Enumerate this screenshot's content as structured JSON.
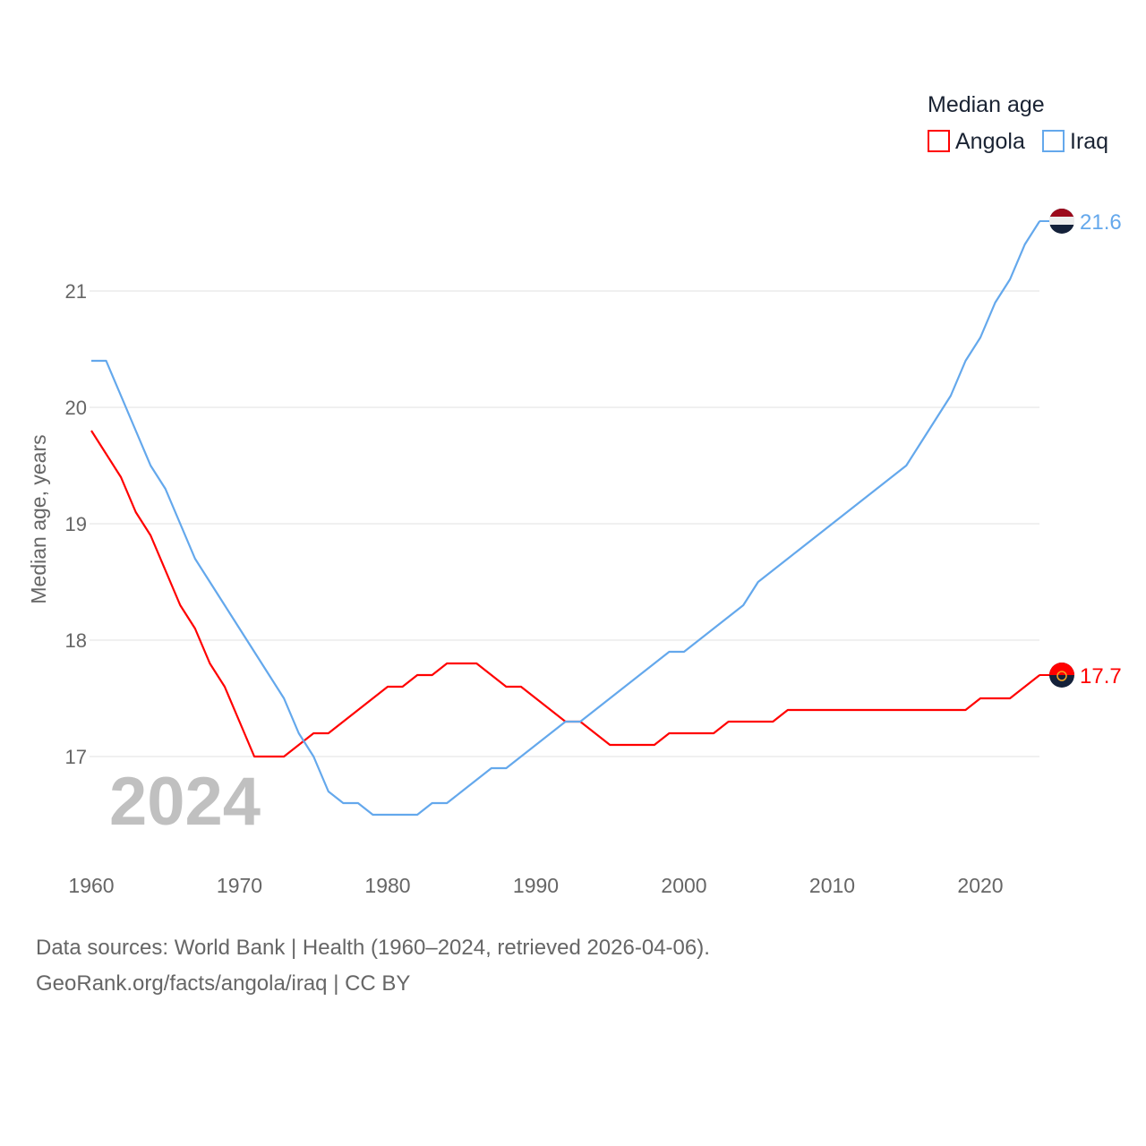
{
  "chart_data": {
    "type": "line",
    "title": "",
    "legend_title": "Median age",
    "legend_position": "top-right",
    "xlabel": "",
    "ylabel": "Median age, years",
    "xlim": [
      1960,
      2024
    ],
    "ylim": [
      16.1,
      21.9
    ],
    "xticks": [
      1960,
      1970,
      1980,
      1990,
      2000,
      2010,
      2020
    ],
    "yticks": [
      17,
      18,
      19,
      20,
      21
    ],
    "grid": true,
    "year_watermark": "2024",
    "x": [
      1960,
      1961,
      1962,
      1963,
      1964,
      1965,
      1966,
      1967,
      1968,
      1969,
      1970,
      1971,
      1972,
      1973,
      1974,
      1975,
      1976,
      1977,
      1978,
      1979,
      1980,
      1981,
      1982,
      1983,
      1984,
      1985,
      1986,
      1987,
      1988,
      1989,
      1990,
      1991,
      1992,
      1993,
      1994,
      1995,
      1996,
      1997,
      1998,
      1999,
      2000,
      2001,
      2002,
      2003,
      2004,
      2005,
      2006,
      2007,
      2008,
      2009,
      2010,
      2011,
      2012,
      2013,
      2014,
      2015,
      2016,
      2017,
      2018,
      2019,
      2020,
      2021,
      2022,
      2023,
      2024
    ],
    "series": [
      {
        "name": "Angola",
        "color": "#ff0000",
        "end_label": "17.7",
        "values": [
          19.8,
          19.6,
          19.4,
          19.1,
          18.9,
          18.6,
          18.3,
          18.1,
          17.8,
          17.6,
          17.3,
          17.0,
          17.0,
          17.0,
          17.1,
          17.2,
          17.2,
          17.3,
          17.4,
          17.5,
          17.6,
          17.6,
          17.7,
          17.7,
          17.8,
          17.8,
          17.8,
          17.7,
          17.6,
          17.6,
          17.5,
          17.4,
          17.3,
          17.3,
          17.2,
          17.1,
          17.1,
          17.1,
          17.1,
          17.2,
          17.2,
          17.2,
          17.2,
          17.3,
          17.3,
          17.3,
          17.3,
          17.4,
          17.4,
          17.4,
          17.4,
          17.4,
          17.4,
          17.4,
          17.4,
          17.4,
          17.4,
          17.4,
          17.4,
          17.4,
          17.5,
          17.5,
          17.5,
          17.6,
          17.7
        ]
      },
      {
        "name": "Iraq",
        "color": "#64a8ec",
        "end_label": "21.6",
        "values": [
          20.4,
          20.4,
          20.1,
          19.8,
          19.5,
          19.3,
          19.0,
          18.7,
          18.5,
          18.3,
          18.1,
          17.9,
          17.7,
          17.5,
          17.2,
          17.0,
          16.7,
          16.6,
          16.6,
          16.5,
          16.5,
          16.5,
          16.5,
          16.6,
          16.6,
          16.7,
          16.8,
          16.9,
          16.9,
          17.0,
          17.1,
          17.2,
          17.3,
          17.3,
          17.4,
          17.5,
          17.6,
          17.7,
          17.8,
          17.9,
          17.9,
          18.0,
          18.1,
          18.2,
          18.3,
          18.5,
          18.6,
          18.7,
          18.8,
          18.9,
          19.0,
          19.1,
          19.2,
          19.3,
          19.4,
          19.5,
          19.7,
          19.9,
          20.1,
          20.4,
          20.6,
          20.9,
          21.1,
          21.4,
          21.6
        ]
      }
    ]
  },
  "footer": {
    "line1": "Data sources: World Bank | Health (1960–2024, retrieved 2026-04-06).",
    "line2": "GeoRank.org/facts/angola/iraq | CC BY"
  }
}
